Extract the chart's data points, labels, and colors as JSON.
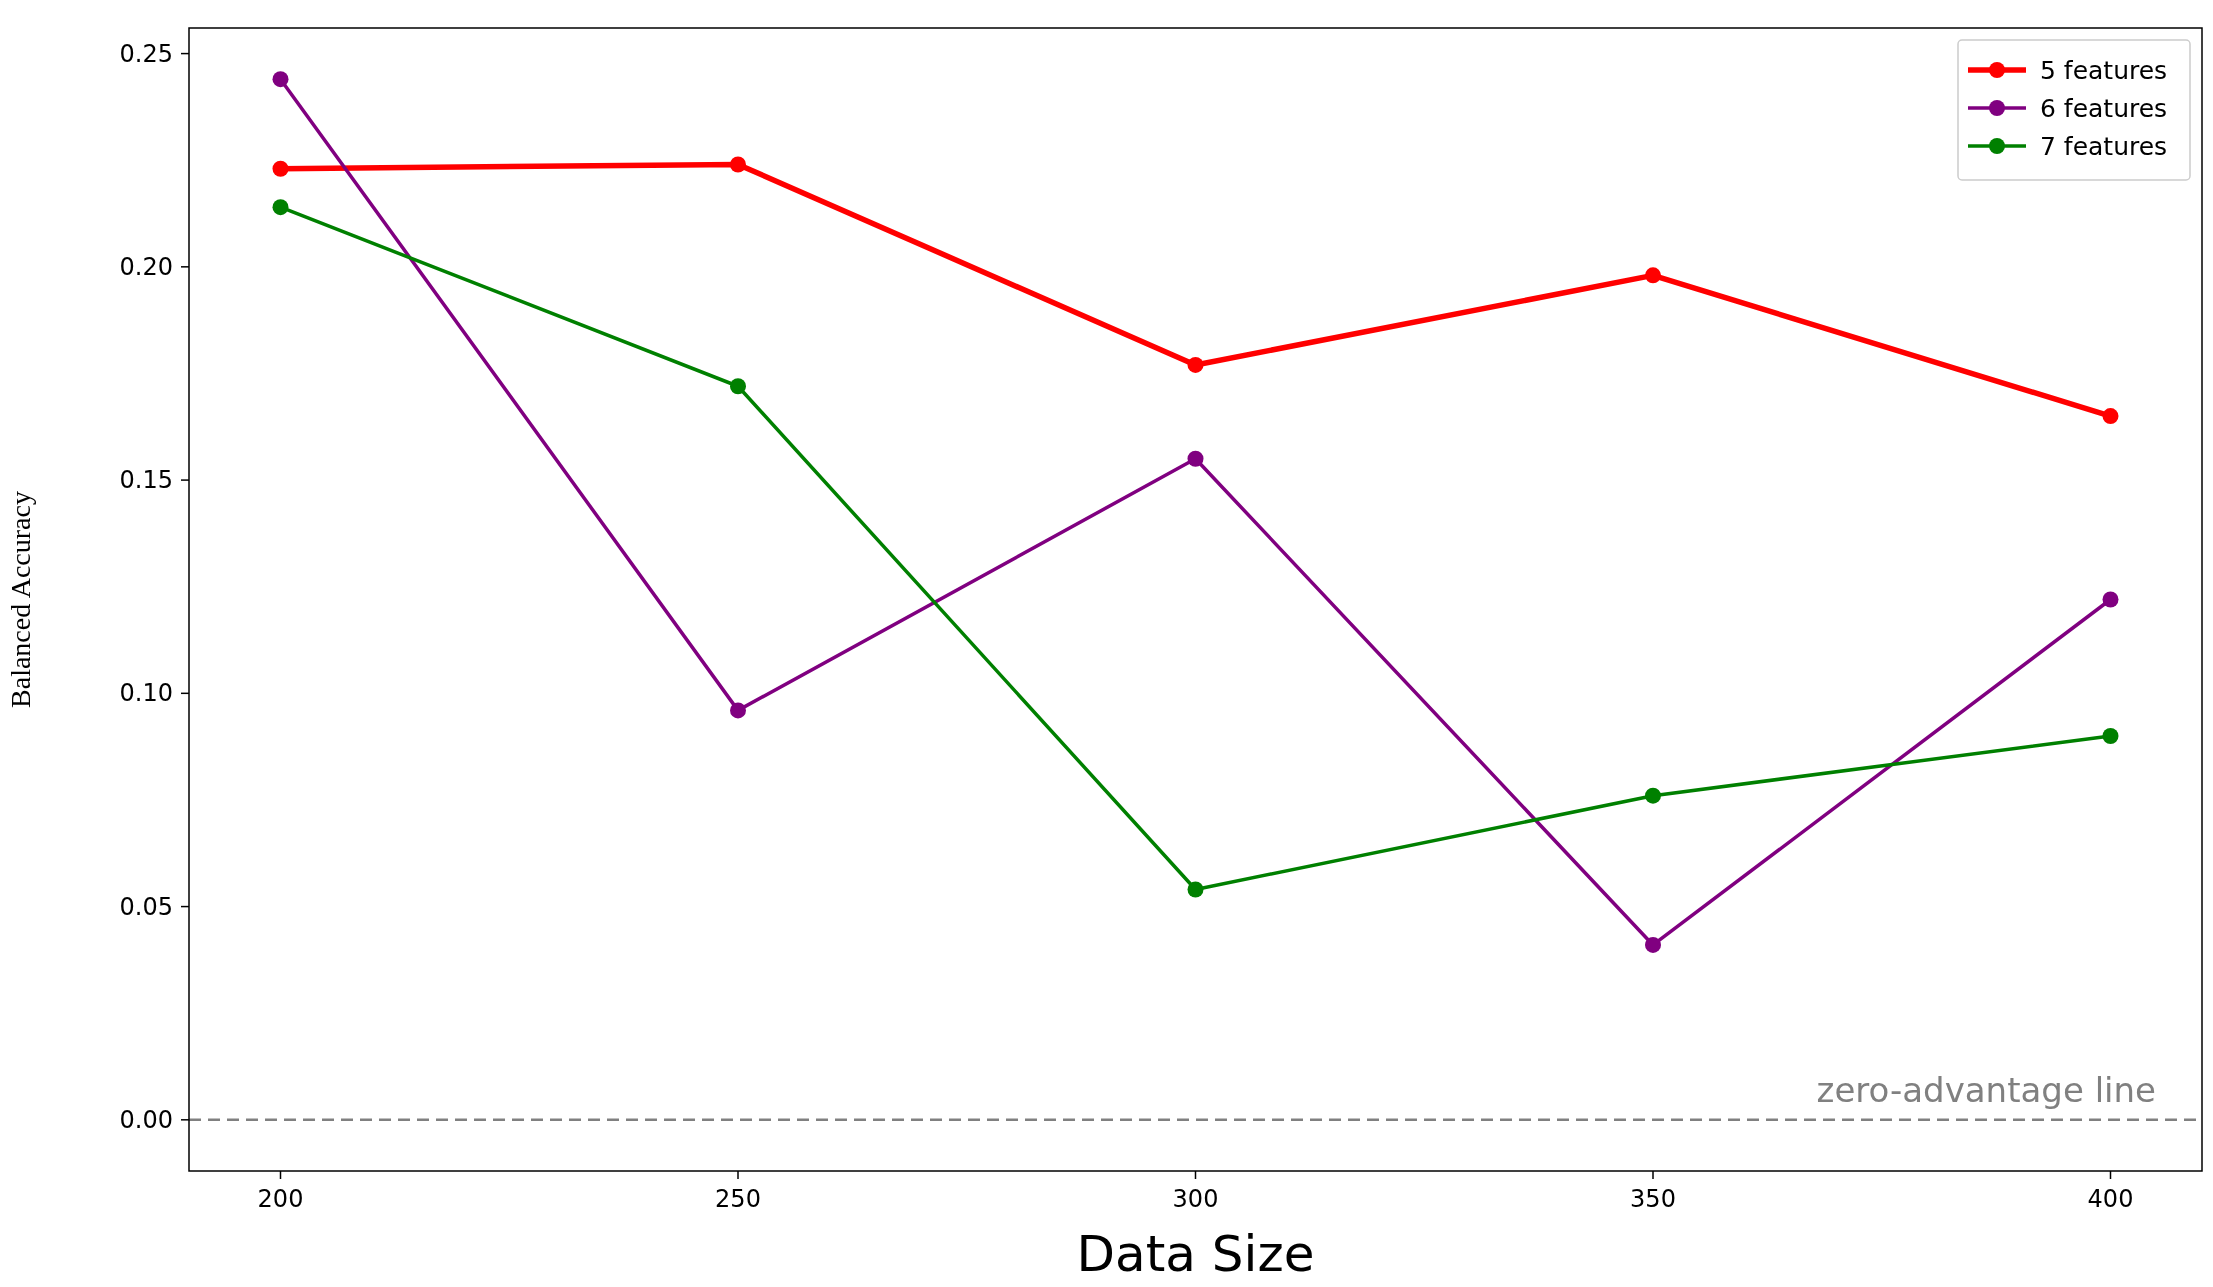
{
  "chart_data": {
    "type": "line",
    "xlabel": "Data Size",
    "ylabel": "Balanced Accuracy",
    "x": [
      200,
      250,
      300,
      350,
      400
    ],
    "series": [
      {
        "name": "5 features",
        "color": "#ff0000",
        "values": [
          0.223,
          0.224,
          0.177,
          0.198,
          0.165
        ]
      },
      {
        "name": "6 features",
        "color": "#800080",
        "values": [
          0.244,
          0.096,
          0.155,
          0.041,
          0.122
        ]
      },
      {
        "name": "7 features",
        "color": "#008000",
        "values": [
          0.214,
          0.172,
          0.054,
          0.076,
          0.09
        ]
      }
    ],
    "xlim": [
      190,
      410
    ],
    "xticks": [
      200,
      250,
      300,
      350,
      400
    ],
    "ylim": [
      -0.012,
      0.256
    ],
    "yticks": [
      {
        "value": 0,
        "label": "0.00"
      },
      {
        "value": 0.05,
        "label": "0.05"
      },
      {
        "value": 0.1,
        "label": "0.10"
      },
      {
        "value": 0.15,
        "label": "0.15"
      },
      {
        "value": 0.2,
        "label": "0.20"
      },
      {
        "value": 0.25,
        "label": "0.25"
      }
    ],
    "ref_lines": [
      {
        "axis": "y",
        "value": 0,
        "label": "zero-advantage line",
        "color": "#808080",
        "line_style": "dashed"
      }
    ],
    "legend": "top right",
    "marker": "circle",
    "line_style": "solid",
    "grid": false
  }
}
